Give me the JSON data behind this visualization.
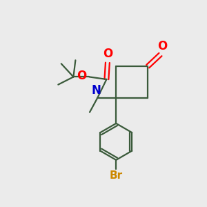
{
  "background_color": "#EBEBEB",
  "bond_color": "#3A5A3A",
  "oxygen_color": "#FF0000",
  "nitrogen_color": "#0000CC",
  "bromine_color": "#CC8800",
  "line_width": 1.6,
  "figsize": [
    3.0,
    3.0
  ],
  "dpi": 100,
  "xlim": [
    0,
    10
  ],
  "ylim": [
    0,
    10
  ]
}
